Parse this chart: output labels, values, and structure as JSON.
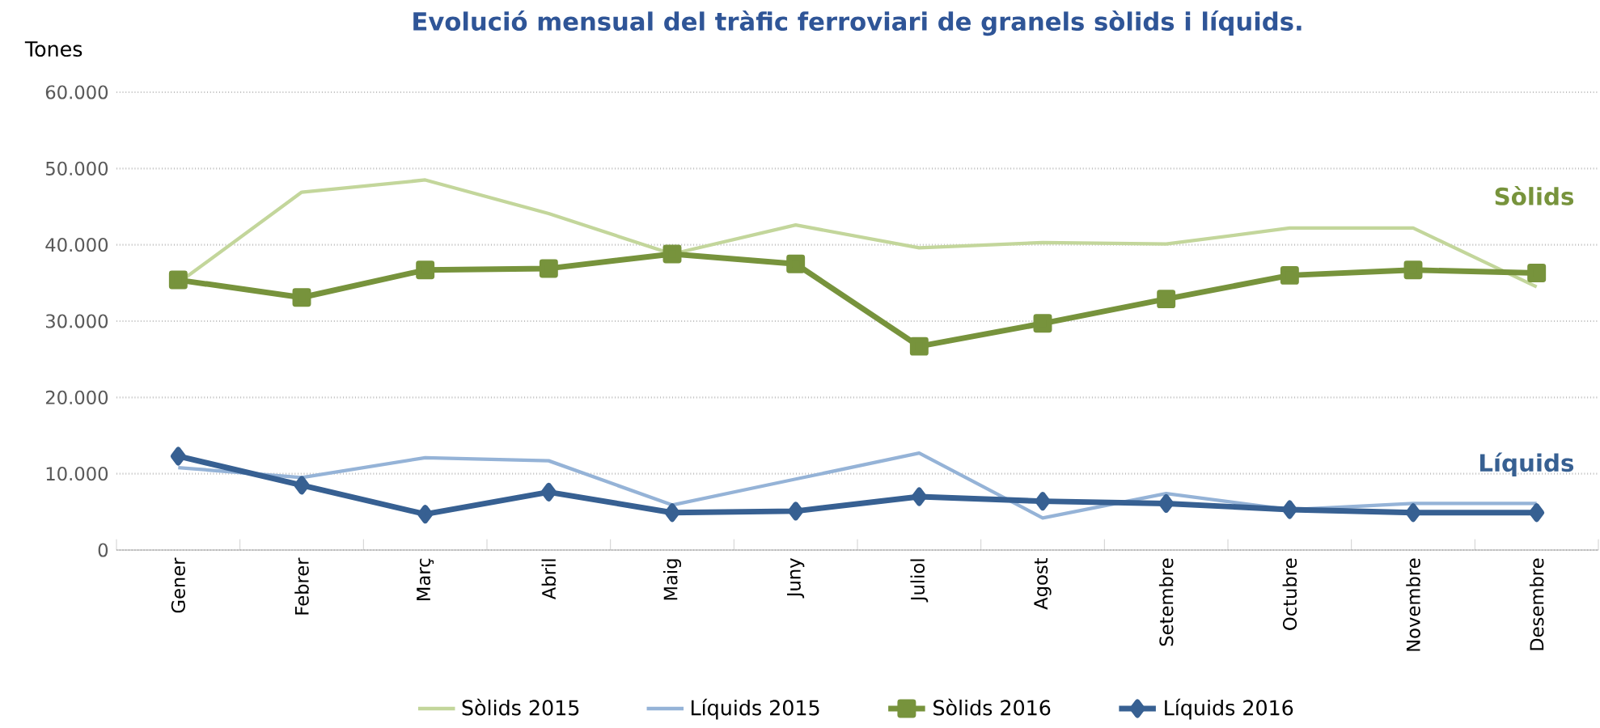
{
  "chart_data": {
    "type": "line",
    "title": "Evolució mensual del tràfic ferroviari de granels sòlids i líquids.",
    "ylabel": "Tones",
    "categories": [
      "Gener",
      "Febrer",
      "Març",
      "Abril",
      "Maig",
      "Juny",
      "Juliol",
      "Agost",
      "Setembre",
      "Octubre",
      "Novembre",
      "Desembre"
    ],
    "series": [
      {
        "name": "Sòlids 2015",
        "color": "#c3d69b",
        "marker": "none",
        "values": [
          35000,
          46900,
          48500,
          44100,
          38800,
          42600,
          39600,
          40300,
          40100,
          42200,
          42200,
          34500
        ]
      },
      {
        "name": "Líquids 2015",
        "color": "#95b3d7",
        "marker": "none",
        "values": [
          10800,
          9500,
          12100,
          11700,
          5900,
          9300,
          12700,
          4200,
          7400,
          5300,
          6100,
          6100
        ]
      },
      {
        "name": "Sòlids 2016",
        "color": "#77933c",
        "marker": "square",
        "values": [
          35400,
          33100,
          36700,
          36900,
          38800,
          37500,
          26700,
          29700,
          32900,
          36000,
          36700,
          36300
        ]
      },
      {
        "name": "Líquids 2016",
        "color": "#376092",
        "marker": "diamond",
        "values": [
          12300,
          8500,
          4700,
          7600,
          4900,
          5100,
          7000,
          6400,
          6100,
          5300,
          4900,
          4900
        ]
      }
    ],
    "ylim": [
      0,
      60000
    ],
    "yticks": [
      0,
      {
        "value": 10000,
        "label": "10.000"
      },
      {
        "value": 20000,
        "label": "20.000"
      },
      {
        "value": 30000,
        "label": "30.000"
      },
      {
        "value": 40000,
        "label": "40.000"
      },
      {
        "value": 50000,
        "label": "50.000"
      },
      {
        "value": 60000,
        "label": "60.000"
      }
    ],
    "grid": "y",
    "legend": "bottom",
    "line_style": "solid",
    "annotations": [
      "Sòlids",
      "Líquids"
    ]
  }
}
